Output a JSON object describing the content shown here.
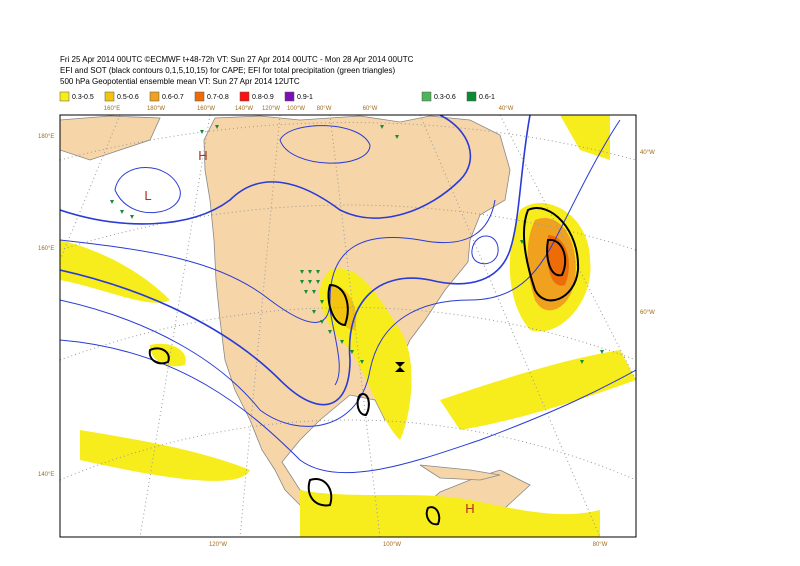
{
  "header": {
    "lines": [
      "Fri 25 Apr 2014 00UTC ©ECMWF t+48-72h VT: Sun 27 Apr 2014 00UTC - Mon 28 Apr 2014 00UTC",
      "EFI and SOT (black contours 0,1,5,10,15) for CAPE; EFI for total precipitation (green triangles)",
      "500 hPa Geopotential ensemble mean VT: Sun 27 Apr 2014 12UTC"
    ]
  },
  "legend": {
    "items": [
      {
        "label": "0.3-0.5",
        "color": "#f7ec1c"
      },
      {
        "label": "0.5-0.6",
        "color": "#f2c40f"
      },
      {
        "label": "0.6-0.7",
        "color": "#f0a21e"
      },
      {
        "label": "0.7-0.8",
        "color": "#ee6c08"
      },
      {
        "label": "0.8-0.9",
        "color": "#ff1010"
      },
      {
        "label": "0.9-1",
        "color": "#7a10b8"
      },
      {
        "label": "0.3-0.6",
        "color": "#4fb35a"
      },
      {
        "label": "0.6-1",
        "color": "#0a8a34"
      }
    ]
  },
  "map": {
    "top_labels": [
      "160°E",
      "180°W",
      "160°W",
      "140°W",
      "120°W",
      "100°W",
      "80°W",
      "60°W",
      "40°W"
    ],
    "left_labels": [
      "180°E",
      "160°E",
      "140°E"
    ],
    "right_labels": [
      "40°W",
      "60°W"
    ],
    "bottom_labels": [
      "120°W",
      "100°W",
      "80°W"
    ],
    "pressure_labels": [
      "H",
      "L",
      "H"
    ]
  }
}
